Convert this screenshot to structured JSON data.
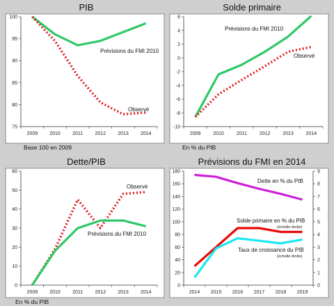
{
  "chart_data": [
    {
      "id": "pib",
      "type": "line",
      "title": "PIB",
      "footnote": "Base 100 en 2009",
      "x": [
        "2009",
        "2010",
        "2011",
        "2012",
        "2013",
        "2014"
      ],
      "ylim": [
        75,
        100
      ],
      "yticks": [
        75,
        80,
        85,
        90,
        95,
        100
      ],
      "series": [
        {
          "name": "Prévisions du FMI 2010",
          "style": "solid",
          "color": "#2ec866",
          "values": [
            100,
            96,
            93.5,
            94.5,
            96.5,
            98.5
          ]
        },
        {
          "name": "Observé",
          "style": "dotted",
          "color": "#e11b1b",
          "values": [
            100,
            94.5,
            86.5,
            80.5,
            77.8,
            78.2
          ]
        }
      ]
    },
    {
      "id": "solde",
      "type": "line",
      "title": "Solde primaire",
      "footnote": "En % du PIB",
      "x": [
        "2009",
        "2010",
        "2011",
        "2012",
        "2013",
        "2014"
      ],
      "ylim": [
        -10,
        6
      ],
      "yticks": [
        -10,
        -8,
        -6,
        -4,
        -2,
        0,
        2,
        4,
        6
      ],
      "series": [
        {
          "name": "Prévisions du FMI 2010",
          "style": "solid",
          "color": "#2ec866",
          "values": [
            -8.6,
            -2.4,
            -1.0,
            0.9,
            3.1,
            6.1
          ]
        },
        {
          "name": "Observé",
          "style": "dotted",
          "color": "#e11b1b",
          "values": [
            -8.6,
            -5.3,
            -3.2,
            -1.2,
            0.9,
            1.6
          ]
        }
      ]
    },
    {
      "id": "dette",
      "type": "line",
      "title": "Dette/PIB",
      "footnote": "En % du PIB",
      "x": [
        "2009",
        "2010",
        "2011",
        "2012",
        "2013",
        "2014"
      ],
      "ylim": [
        0,
        60
      ],
      "yticks": [
        0,
        10,
        20,
        30,
        40,
        50,
        60
      ],
      "series": [
        {
          "name": "Observé",
          "style": "dotted",
          "color": "#e11b1b",
          "values": [
            0,
            19,
            45,
            30,
            48,
            49
          ]
        },
        {
          "name": "Prévisions du FMI 2010",
          "style": "solid",
          "color": "#2ec866",
          "values": [
            0,
            18,
            30,
            34,
            34,
            31
          ]
        }
      ]
    },
    {
      "id": "prev2014",
      "type": "line",
      "title": "Prévisions du FMI en 2014",
      "x": [
        "2014",
        "2015",
        "2016",
        "2017",
        "2018",
        "2019"
      ],
      "ylim_left": [
        0,
        180
      ],
      "yticks_left": [
        0,
        20,
        40,
        60,
        80,
        100,
        120,
        140,
        160,
        180
      ],
      "ylim_right": [
        0,
        9
      ],
      "yticks_right": [
        0,
        1,
        2,
        3,
        4,
        5,
        6,
        7,
        8,
        9
      ],
      "series": [
        {
          "name": "Dette en % du PIB",
          "axis": "left",
          "style": "solid",
          "color": "#cc1fd6",
          "values": [
            174,
            171,
            161,
            152,
            144,
            135
          ]
        },
        {
          "name": "Solde primaire en % du PIB",
          "note": "(échelle droite)",
          "axis": "right",
          "style": "solid",
          "color": "#e80808",
          "values": [
            1.5,
            3.0,
            4.5,
            4.5,
            4.2,
            4.2
          ]
        },
        {
          "name": "Taux de croissance du PIB",
          "note": "(échelle droite)",
          "axis": "right",
          "style": "solid",
          "color": "#1ce6f0",
          "values": [
            0.6,
            2.9,
            3.7,
            3.5,
            3.3,
            3.6
          ]
        }
      ]
    }
  ]
}
